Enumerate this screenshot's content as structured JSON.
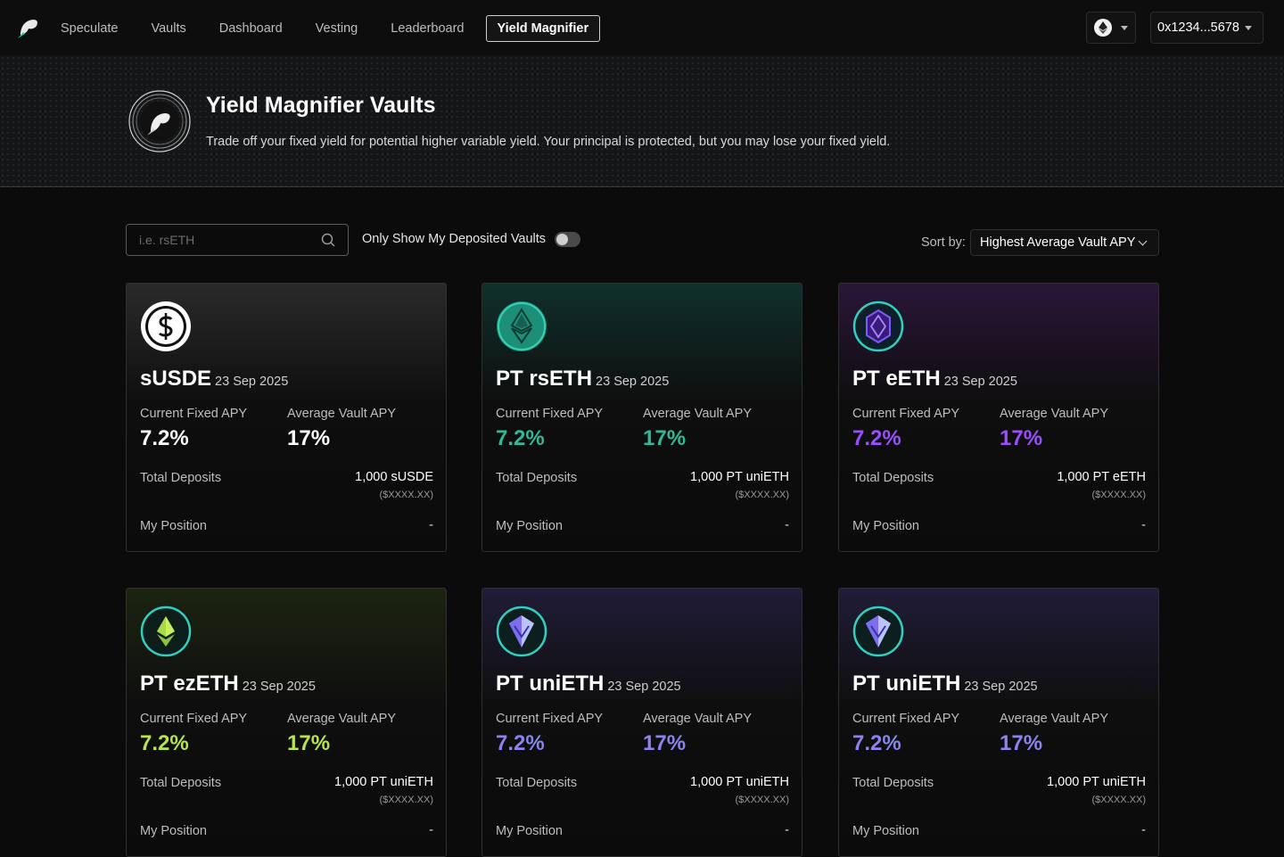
{
  "nav": {
    "links": [
      {
        "label": "Speculate",
        "active": false
      },
      {
        "label": "Vaults",
        "active": false
      },
      {
        "label": "Dashboard",
        "active": false
      },
      {
        "label": "Vesting",
        "active": false
      },
      {
        "label": "Leaderboard",
        "active": false
      },
      {
        "label": "Yield Magnifier",
        "active": true
      }
    ],
    "network_icon": "ethereum-icon",
    "wallet_address": "0x1234...5678"
  },
  "hero": {
    "title": "Yield Magnifier Vaults",
    "subtitle": "Trade off your fixed yield for potential higher variable yield. Your principal is protected, but you may lose your fixed yield."
  },
  "filters": {
    "search_placeholder": "i.e. rsETH",
    "toggle_label": "Only Show My Deposited Vaults",
    "toggle_on": false,
    "sort_label": "Sort by:",
    "sort_value": "Highest Average Vault APY"
  },
  "labels": {
    "fixed_apy": "Current Fixed APY",
    "vault_apy": "Average Vault APY",
    "total_deposits": "Total Deposits",
    "my_position": "My Position"
  },
  "vaults": [
    {
      "name": "sUSDE",
      "date": "23 Sep 2025",
      "fixed_apy": "7.2%",
      "vault_apy": "17%",
      "deposits": "1,000 sUSDE",
      "deposits_usd": "($XXXX.XX)",
      "position": "-",
      "icon": "dollar-coin-icon",
      "accent": "#ffffff",
      "bg_top": "#2a2a2a"
    },
    {
      "name": "PT rsETH",
      "date": "23 Sep 2025",
      "fixed_apy": "7.2%",
      "vault_apy": "17%",
      "deposits": "1,000 PT uniETH",
      "deposits_usd": "($XXXX.XX)",
      "position": "-",
      "icon": "rseth-token-icon",
      "accent": "#2fb89a",
      "bg_top": "#10302b"
    },
    {
      "name": "PT eETH",
      "date": "23 Sep 2025",
      "fixed_apy": "7.2%",
      "vault_apy": "17%",
      "deposits": "1,000 PT eETH",
      "deposits_usd": "($XXXX.XX)",
      "position": "-",
      "icon": "eeth-token-icon",
      "accent": "#9b4dff",
      "bg_top": "#2a1638"
    },
    {
      "name": "PT ezETH",
      "date": "23 Sep 2025",
      "fixed_apy": "7.2%",
      "vault_apy": "17%",
      "deposits": "1,000 PT uniETH",
      "deposits_usd": "($XXXX.XX)",
      "position": "-",
      "icon": "ezeth-token-icon",
      "accent": "#b8e34a",
      "bg_top": "#1c2410"
    },
    {
      "name": "PT uniETH",
      "date": "23 Sep 2025",
      "fixed_apy": "7.2%",
      "vault_apy": "17%",
      "deposits": "1,000 PT uniETH",
      "deposits_usd": "($XXXX.XX)",
      "position": "-",
      "icon": "unieth-token-icon",
      "accent": "#8c82f0",
      "bg_top": "#211c38"
    },
    {
      "name": "PT uniETH",
      "date": "23 Sep 2025",
      "fixed_apy": "7.2%",
      "vault_apy": "17%",
      "deposits": "1,000 PT uniETH",
      "deposits_usd": "($XXXX.XX)",
      "position": "-",
      "icon": "unieth-token-icon",
      "accent": "#8c82f0",
      "bg_top": "#211c38"
    }
  ]
}
